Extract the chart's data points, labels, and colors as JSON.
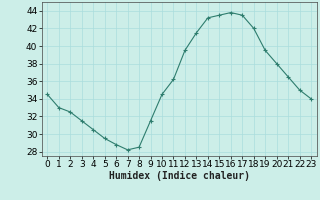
{
  "x": [
    0,
    1,
    2,
    3,
    4,
    5,
    6,
    7,
    8,
    9,
    10,
    11,
    12,
    13,
    14,
    15,
    16,
    17,
    18,
    19,
    20,
    21,
    22,
    23
  ],
  "y": [
    34.5,
    33.0,
    32.5,
    31.5,
    30.5,
    29.5,
    28.8,
    28.2,
    28.5,
    31.5,
    34.5,
    36.2,
    39.5,
    41.5,
    43.2,
    43.5,
    43.8,
    43.5,
    42.0,
    39.5,
    38.0,
    36.5,
    35.0,
    34.0
  ],
  "line_color": "#2e7d6e",
  "marker": "+",
  "marker_size": 3,
  "marker_linewidth": 0.8,
  "line_width": 0.8,
  "background_color": "#cceee8",
  "grid_color": "#aadddd",
  "xlabel": "Humidex (Indice chaleur)",
  "xlim": [
    -0.5,
    23.5
  ],
  "ylim": [
    27.5,
    45.0
  ],
  "yticks": [
    28,
    30,
    32,
    34,
    36,
    38,
    40,
    42,
    44
  ],
  "xticks": [
    0,
    1,
    2,
    3,
    4,
    5,
    6,
    7,
    8,
    9,
    10,
    11,
    12,
    13,
    14,
    15,
    16,
    17,
    18,
    19,
    20,
    21,
    22,
    23
  ],
  "xlabel_fontsize": 7,
  "tick_fontsize": 6.5,
  "spine_color": "#444444"
}
